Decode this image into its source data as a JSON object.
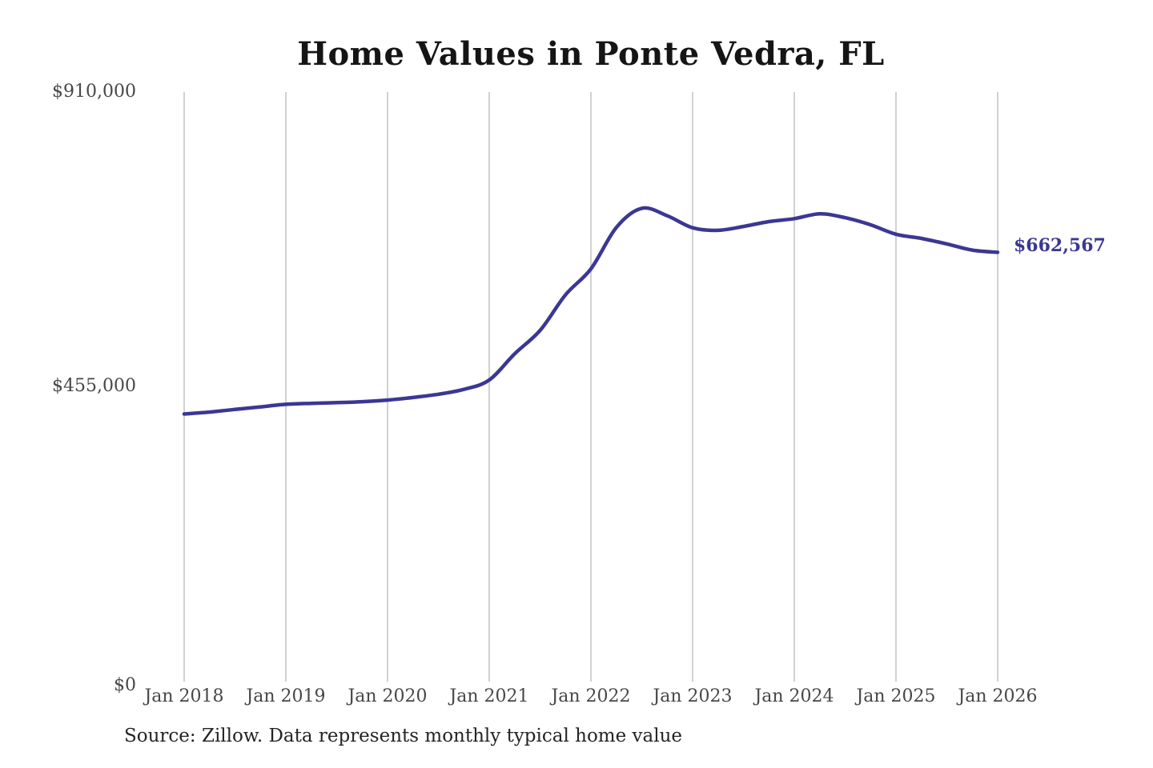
{
  "title": "Home Values in Ponte Vedra, FL",
  "source_note": "Source: Zillow. Data represents monthly typical home value",
  "colors": {
    "line": "#3b3793",
    "grid": "#cccccc",
    "axis_label": "#474747",
    "title_text": "#151515",
    "end_label": "#3b3793",
    "background": "#ffffff"
  },
  "chart_data": {
    "type": "line",
    "title": "Home Values in Ponte Vedra, FL",
    "xlabel": "",
    "ylabel": "",
    "x_unit": "decimal_year",
    "xlim": [
      2018,
      2026
    ],
    "ylim": [
      0,
      910000
    ],
    "x_ticks": [
      2018,
      2019,
      2020,
      2021,
      2022,
      2023,
      2024,
      2025,
      2026
    ],
    "x_tick_labels": [
      "Jan 2018",
      "Jan 2019",
      "Jan 2020",
      "Jan 2021",
      "Jan 2022",
      "Jan 2023",
      "Jan 2024",
      "Jan 2025",
      "Jan 2026"
    ],
    "y_ticks": [
      0,
      455000,
      910000
    ],
    "y_tick_labels": [
      "$0",
      "$455,000",
      "$910,000"
    ],
    "grid": "vertical-only",
    "legend": "none",
    "end_label": "$662,567",
    "end_value": 662567,
    "series": [
      {
        "name": "Monthly typical home value",
        "x": [
          2018.0,
          2018.25,
          2018.5,
          2018.75,
          2019.0,
          2019.25,
          2019.5,
          2019.75,
          2020.0,
          2020.25,
          2020.5,
          2020.75,
          2021.0,
          2021.25,
          2021.5,
          2021.75,
          2022.0,
          2022.25,
          2022.5,
          2022.75,
          2023.0,
          2023.25,
          2023.5,
          2023.75,
          2024.0,
          2024.25,
          2024.5,
          2024.75,
          2025.0,
          2025.25,
          2025.5,
          2025.75,
          2026.0
        ],
        "y": [
          413000,
          416000,
          420000,
          424000,
          428000,
          429500,
          430500,
          432000,
          434500,
          438500,
          443500,
          451000,
          465500,
          506000,
          542000,
          597000,
          637000,
          701000,
          730500,
          719000,
          700500,
          696500,
          702500,
          710000,
          714500,
          722000,
          716000,
          705000,
          690500,
          684000,
          675500,
          666000,
          662567
        ]
      }
    ]
  }
}
